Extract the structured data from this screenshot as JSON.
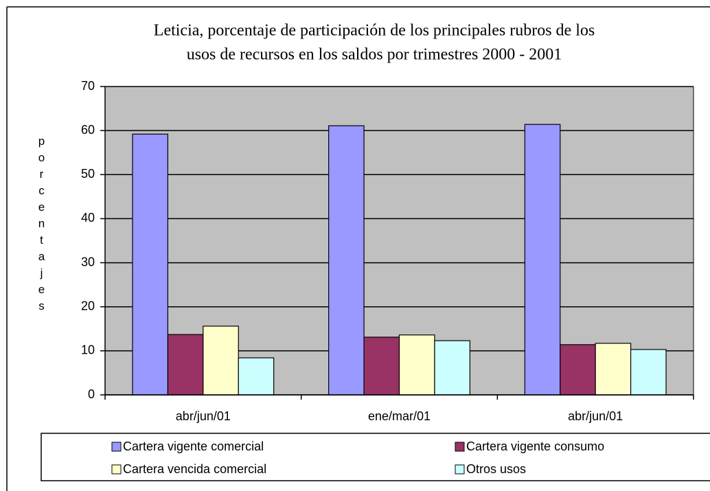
{
  "chart_data": {
    "type": "bar",
    "title": [
      "Leticia, porcentaje de participación de los principales rubros de los",
      "usos  de recursos en los saldos por trimestres 2000 - 2001"
    ],
    "y_label": "porcentajes",
    "categories": [
      "abr/jun/01",
      "ene/mar/01",
      "abr/jun/01"
    ],
    "series": [
      {
        "name": "Cartera vigente comercial",
        "color": "#9999ff",
        "values": [
          59.2,
          61.1,
          61.4
        ]
      },
      {
        "name": "Cartera vigente consumo",
        "color": "#993366",
        "values": [
          13.7,
          13.1,
          11.4
        ]
      },
      {
        "name": "Cartera vencida comercial",
        "color": "#ffffcc",
        "values": [
          15.6,
          13.6,
          11.7
        ]
      },
      {
        "name": "Otros usos",
        "color": "#ccffff",
        "values": [
          8.4,
          12.3,
          10.3
        ]
      }
    ],
    "ylim": [
      0,
      70
    ],
    "yticks": [
      0,
      10,
      20,
      30,
      40,
      50,
      60,
      70
    ],
    "grid": true,
    "plot_background": "#c0c0c0",
    "legend": "bottom"
  }
}
